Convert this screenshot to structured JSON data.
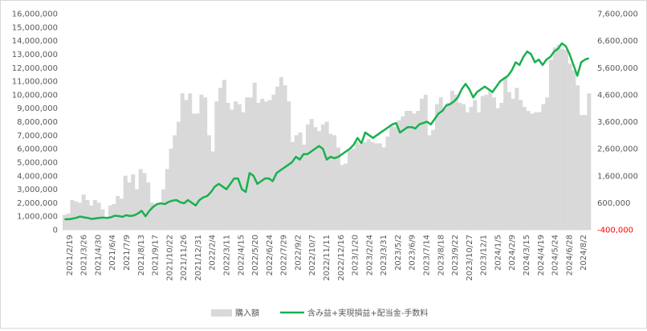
{
  "chart_data": {
    "type": "bar+line",
    "title": "",
    "legend_position": "bottom",
    "grid": false,
    "colors": {
      "bars": "#d9d9d9",
      "line": "#19b04f",
      "negative_tick": "#ff0000",
      "text": "#595959"
    },
    "left_axis": {
      "min": 0,
      "max": 16000000,
      "step": 1000000,
      "tick_labels": [
        "0",
        "1,000,000",
        "2,000,000",
        "3,000,000",
        "4,000,000",
        "5,000,000",
        "6,000,000",
        "7,000,000",
        "8,000,000",
        "9,000,000",
        "10,000,000",
        "11,000,000",
        "12,000,000",
        "13,000,000",
        "14,000,000",
        "15,000,000",
        "16,000,000"
      ]
    },
    "right_axis": {
      "min": -400000,
      "max": 7600000,
      "step": 1000000,
      "tick_labels": [
        "-400,000",
        "600,000",
        "1,600,000",
        "2,600,000",
        "3,600,000",
        "4,600,000",
        "5,600,000",
        "6,600,000",
        "7,600,000"
      ]
    },
    "x_tick_labels": [
      "2021/2/19",
      "2021/3/26",
      "2021/4/30",
      "2021/6/4",
      "2021/7/9",
      "2021/8/13",
      "2021/9/17",
      "2021/10/22",
      "2021/11/26",
      "2021/12/31",
      "2022/2/4",
      "2022/3/11",
      "2022/4/15",
      "2022/5/20",
      "2022/6/24",
      "2022/7/29",
      "2022/9/2",
      "2022/10/7",
      "2022/11/11",
      "2022/12/16",
      "2023/1/20",
      "2023/2/24",
      "2023/3/31",
      "2023/5/2",
      "2023/6/9",
      "2023/7/14",
      "2023/8/18",
      "2023/9/22",
      "2023/10/27",
      "2023/12/1",
      "2024/1/5",
      "2024/2/9",
      "2024/3/15",
      "2024/4/19",
      "2024/5/24",
      "2024/6/28",
      "2024/8/2"
    ],
    "series": [
      {
        "name": "購入額",
        "kind": "bar",
        "axis": "left",
        "values": [
          1100000,
          1200000,
          2200000,
          2100000,
          2000000,
          2600000,
          2200000,
          1800000,
          2200000,
          2000000,
          1500000,
          800000,
          1800000,
          1900000,
          2500000,
          2300000,
          4000000,
          3500000,
          4100000,
          3000000,
          4500000,
          4200000,
          3500000,
          2000000,
          1800000,
          2000000,
          3000000,
          4500000,
          6000000,
          7000000,
          8000000,
          10100000,
          9600000,
          10100000,
          8600000,
          8600000,
          10000000,
          9800000,
          7000000,
          5800000,
          9500000,
          10500000,
          11100000,
          9400000,
          8900000,
          9500000,
          9300000,
          8700000,
          9800000,
          9800000,
          10900000,
          9400000,
          9700000,
          9500000,
          9600000,
          10000000,
          10600000,
          11300000,
          10700000,
          9500000,
          6500000,
          7000000,
          7200000,
          6300000,
          7800000,
          8200000,
          7600000,
          7300000,
          7800000,
          8000000,
          7100000,
          7000000,
          6100000,
          4800000,
          4900000,
          5900000,
          6000000,
          6500000,
          6300000,
          6500000,
          6700000,
          6500000,
          6400000,
          6400000,
          6100000,
          6900000,
          7800000,
          7600000,
          8100000,
          8400000,
          8800000,
          8800000,
          8600000,
          8800000,
          9700000,
          10000000,
          7000000,
          7400000,
          9300000,
          9800000,
          9000000,
          9400000,
          10300000,
          10000000,
          9400000,
          9300000,
          8700000,
          9100000,
          9600000,
          8700000,
          9900000,
          10000000,
          10300000,
          9800000,
          9000000,
          9400000,
          11300000,
          10200000,
          9700000,
          10500000,
          9600000,
          9100000,
          8800000,
          8600000,
          8700000,
          8700000,
          9300000,
          9800000,
          12600000,
          13500000,
          13700000,
          13400000,
          13300000,
          12300000,
          11800000,
          10700000,
          8500000,
          8500000,
          10100000
        ]
      },
      {
        "name": "含み益+実現損益+配当金-手数料",
        "kind": "line",
        "axis": "right",
        "values": [
          -10000,
          -10000,
          10000,
          40000,
          90000,
          60000,
          40000,
          0,
          20000,
          40000,
          50000,
          40000,
          60000,
          120000,
          110000,
          80000,
          140000,
          110000,
          130000,
          200000,
          300000,
          100000,
          300000,
          450000,
          550000,
          580000,
          550000,
          630000,
          680000,
          700000,
          620000,
          580000,
          700000,
          600000,
          500000,
          700000,
          800000,
          850000,
          1000000,
          1200000,
          1300000,
          1200000,
          1100000,
          1300000,
          1500000,
          1500000,
          1100000,
          1000000,
          1700000,
          1600000,
          1300000,
          1400000,
          1500000,
          1500000,
          1400000,
          1700000,
          1800000,
          1900000,
          2000000,
          2100000,
          2300000,
          2200000,
          2400000,
          2400000,
          2500000,
          2600000,
          2700000,
          2600000,
          2200000,
          2300000,
          2250000,
          2300000,
          2400000,
          2500000,
          2600000,
          2750000,
          3000000,
          2800000,
          3200000,
          3100000,
          3000000,
          3100000,
          3200000,
          3300000,
          3400000,
          3500000,
          3550000,
          3200000,
          3300000,
          3400000,
          3400000,
          3350000,
          3500000,
          3550000,
          3600000,
          3500000,
          3700000,
          3900000,
          4000000,
          4200000,
          4250000,
          4350000,
          4500000,
          4800000,
          5000000,
          4800000,
          4500000,
          4700000,
          4800000,
          4900000,
          4800000,
          4700000,
          4900000,
          5100000,
          5200000,
          5300000,
          5500000,
          5800000,
          5700000,
          6000000,
          6200000,
          6100000,
          5800000,
          5900000,
          5700000,
          5900000,
          6000000,
          6200000,
          6300000,
          6500000,
          6400000,
          6100000,
          5700000,
          5300000,
          5800000,
          5900000,
          5950000
        ]
      }
    ]
  }
}
